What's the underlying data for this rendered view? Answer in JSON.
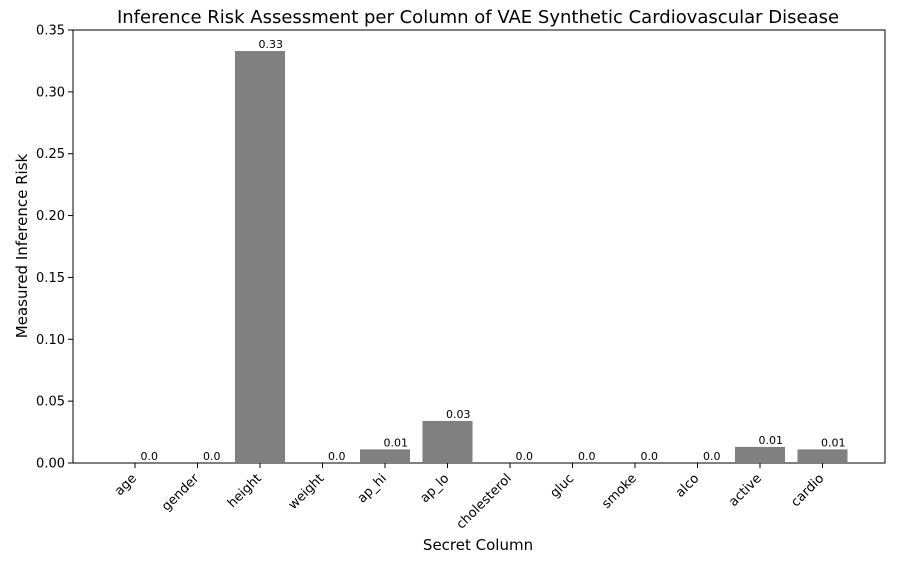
{
  "chart_data": {
    "type": "bar",
    "title": "Inference Risk Assessment per Column of VAE Synthetic Cardiovascular Disease",
    "xlabel": "Secret Column",
    "ylabel": "Measured Inference Risk",
    "categories": [
      "age",
      "gender",
      "height",
      "weight",
      "ap_hi",
      "ap_lo",
      "cholesterol",
      "gluc",
      "smoke",
      "alco",
      "active",
      "cardio"
    ],
    "values": [
      0.0,
      0.0,
      0.333,
      0.0,
      0.011,
      0.034,
      0.0,
      0.0,
      0.0,
      0.0,
      0.013,
      0.011
    ],
    "data_labels": [
      "0.0",
      "0.0",
      "0.33",
      "0.0",
      "0.01",
      "0.03",
      "0.0",
      "0.0",
      "0.0",
      "0.0",
      "0.01",
      "0.01"
    ],
    "ylim": [
      0,
      0.35
    ],
    "yticks": [
      0.0,
      0.05,
      0.1,
      0.15,
      0.2,
      0.25,
      0.3,
      0.35
    ],
    "ytick_labels": [
      "0.00",
      "0.05",
      "0.10",
      "0.15",
      "0.20",
      "0.25",
      "0.30",
      "0.35"
    ],
    "bar_color": "#808080",
    "grid": false,
    "legend": false
  }
}
